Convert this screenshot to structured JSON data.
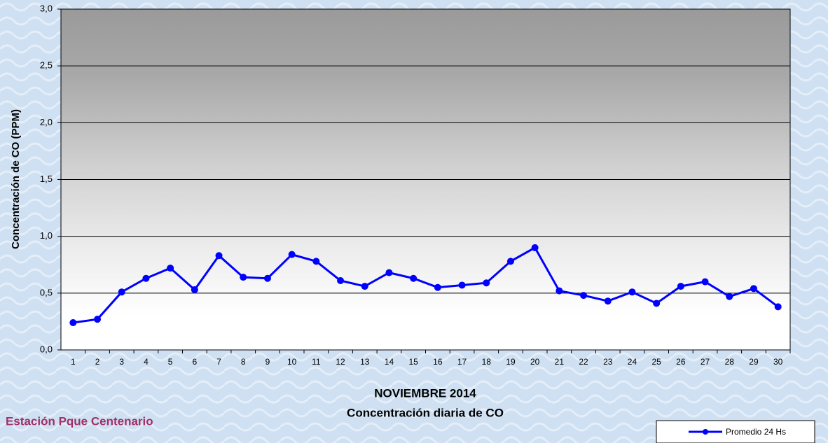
{
  "chart_data": {
    "type": "line",
    "title": "NOVIEMBRE 2014",
    "subtitle": "Concentración diaria de CO",
    "y_label": "Concentración de CO (PPM)",
    "annotation": "Estación Pque Centenario",
    "categories": [
      "1",
      "2",
      "3",
      "4",
      "5",
      "6",
      "7",
      "8",
      "9",
      "10",
      "11",
      "12",
      "13",
      "14",
      "15",
      "16",
      "17",
      "18",
      "19",
      "20",
      "21",
      "22",
      "23",
      "24",
      "25",
      "26",
      "27",
      "28",
      "29",
      "30"
    ],
    "series": [
      {
        "name": "Promedio 24 Hs",
        "color": "#0000ff",
        "values": [
          0.24,
          0.27,
          0.51,
          0.63,
          0.72,
          0.53,
          0.83,
          0.64,
          0.63,
          0.84,
          0.78,
          0.61,
          0.56,
          0.68,
          0.63,
          0.55,
          0.57,
          0.59,
          0.78,
          0.9,
          0.52,
          0.48,
          0.43,
          0.51,
          0.41,
          0.56,
          0.6,
          0.47,
          0.54,
          0.38
        ]
      }
    ],
    "ylim": [
      0,
      3
    ],
    "yticks": [
      {
        "value": 0,
        "label": "0,0"
      },
      {
        "value": 0.5,
        "label": "0,5"
      },
      {
        "value": 1,
        "label": "1,0"
      },
      {
        "value": 1.5,
        "label": "1,5"
      },
      {
        "value": 2,
        "label": "2,0"
      },
      {
        "value": 2.5,
        "label": "2,5"
      },
      {
        "value": 3,
        "label": "3,0"
      }
    ],
    "grid": true,
    "legend": "bottom-right"
  }
}
